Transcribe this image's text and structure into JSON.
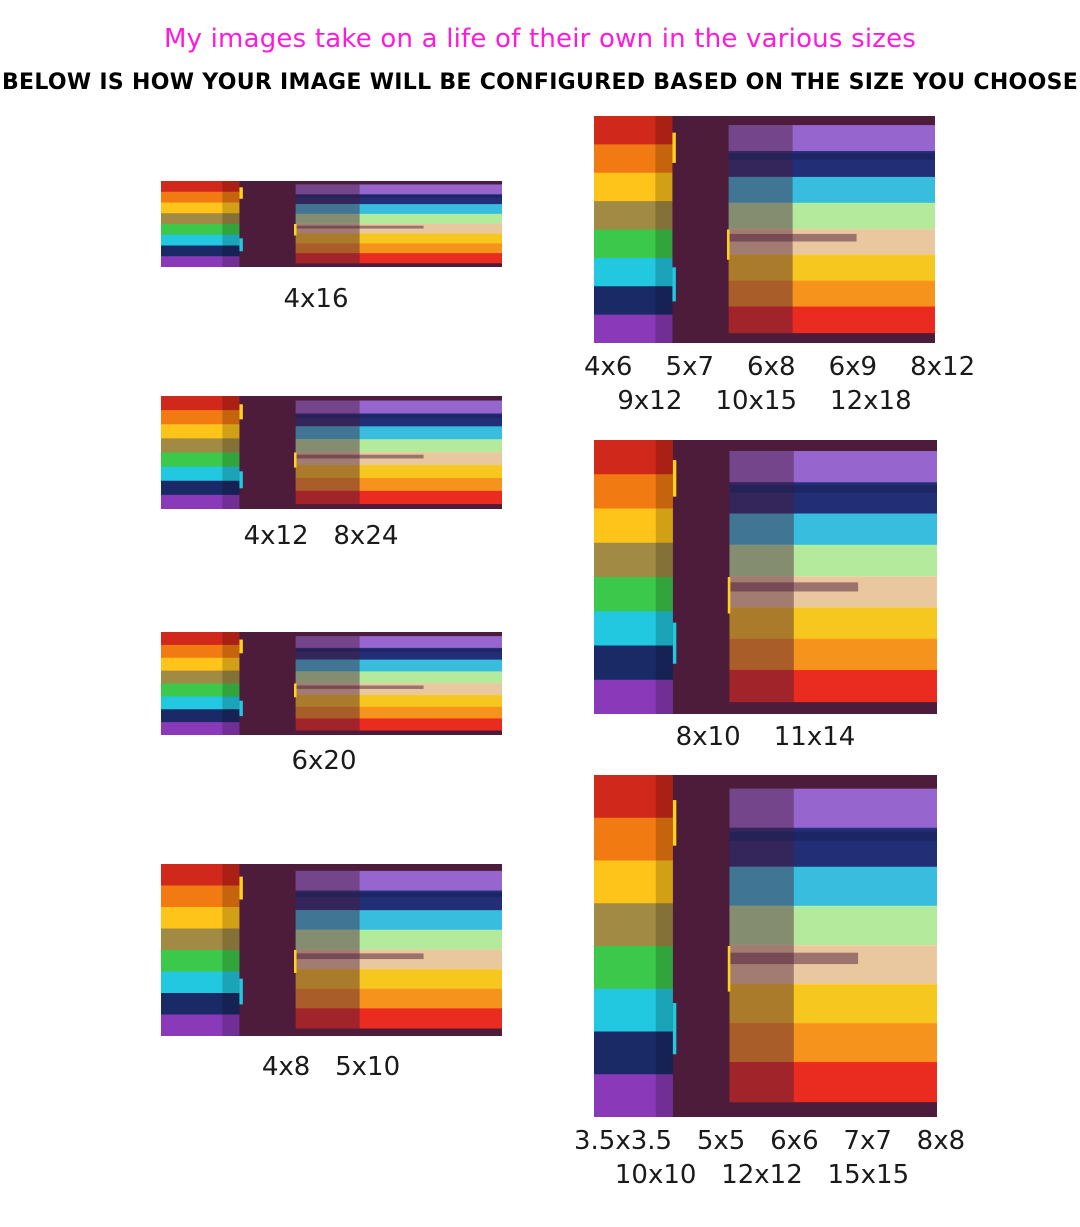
{
  "header": {
    "headline": "My images take on a life of their own in the various sizes",
    "subheadline": "BELOW IS HOW YOUR IMAGE WILL BE CONFIGURED BASED ON THE SIZE YOU CHOOSE"
  },
  "colors": {
    "headline": "#ff1ad9",
    "background_plum": "#4c1c3a",
    "stripes": [
      "#9a6ad6",
      "#20307a",
      "#38c6e8",
      "#b8f5a0",
      "#f2d2a4",
      "#ffd21e",
      "#ff9a1a",
      "#f22c1e"
    ],
    "left_block": [
      "#d0281a",
      "#f27a12",
      "#ffc41a",
      "#a08a44",
      "#3cc84a",
      "#22c8e0",
      "#1a2a66",
      "#8a3ab8"
    ]
  },
  "previews": [
    {
      "id": "4x16",
      "caption": "4x16"
    },
    {
      "id": "4x12",
      "caption": "4x12   8x24"
    },
    {
      "id": "6x20",
      "caption": "6x20"
    },
    {
      "id": "4x8",
      "caption": "4x8   5x10"
    },
    {
      "id": "4x6",
      "caption": "4x6    5x7    6x8    6x9    8x12\n9x12    10x15    12x18"
    },
    {
      "id": "8x10",
      "caption": "8x10    11x14"
    },
    {
      "id": "square",
      "caption": "3.5x3.5   5x5   6x6   7x7   8x8\n10x10   12x12   15x15"
    }
  ]
}
